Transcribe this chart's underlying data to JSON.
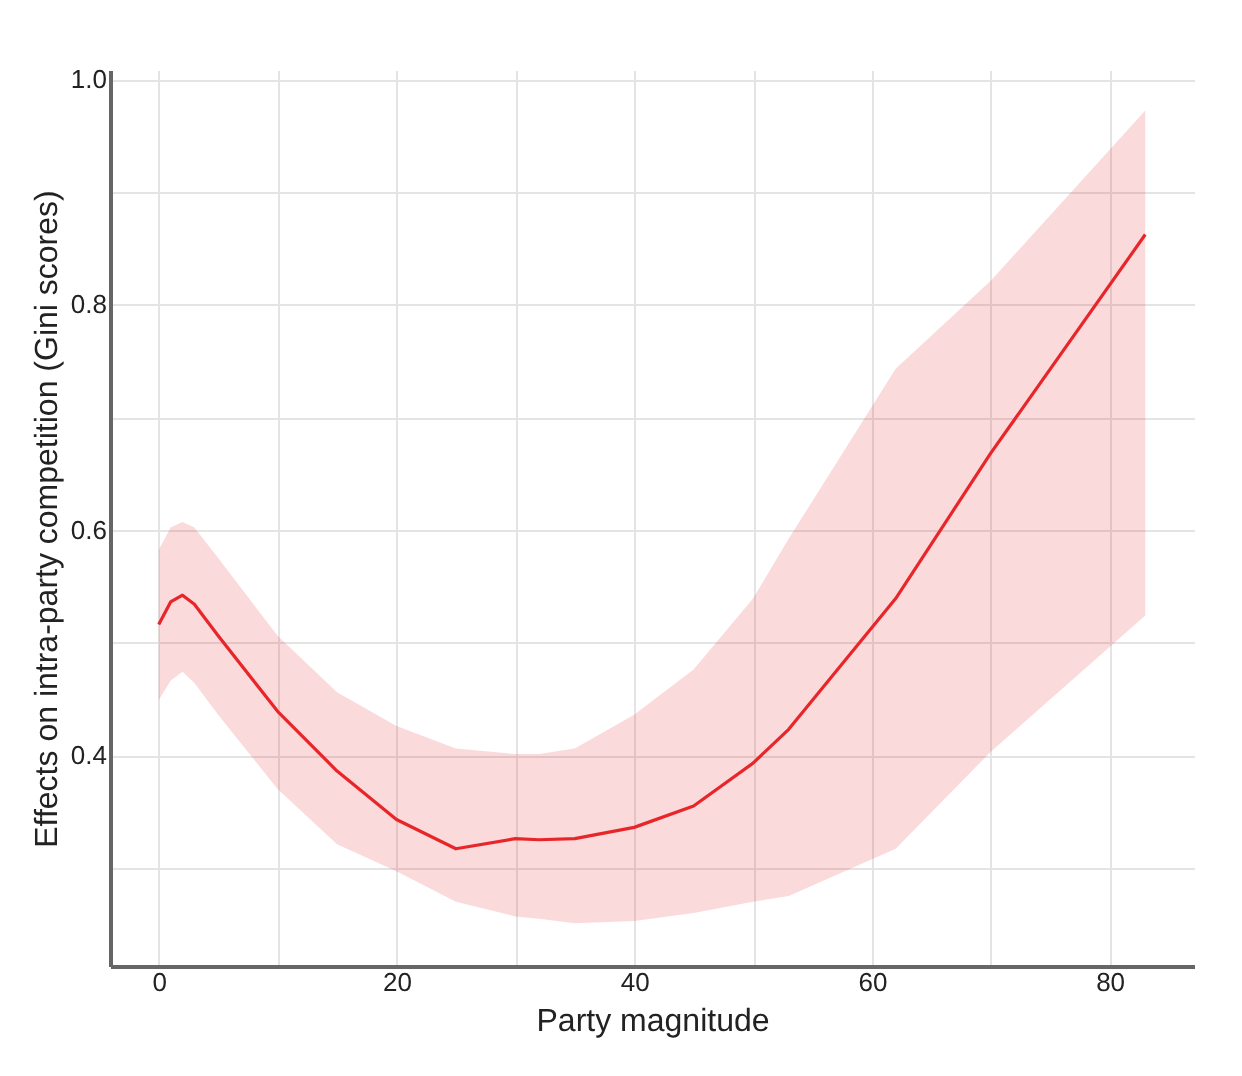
{
  "chart_data": {
    "type": "line",
    "xlabel": "Party magnitude",
    "ylabel": "Effects on intra-party competition (Gini scores)",
    "x": [
      0,
      1,
      2,
      3,
      5,
      10,
      15,
      20,
      25,
      30,
      32,
      35,
      40,
      45,
      50,
      53,
      62,
      70,
      83
    ],
    "series": [
      {
        "color": "#e8262a",
        "values": [
          0.516,
          0.536,
          0.542,
          0.534,
          0.506,
          0.439,
          0.386,
          0.343,
          0.317,
          0.326,
          0.325,
          0.326,
          0.336,
          0.355,
          0.393,
          0.423,
          0.539,
          0.668,
          0.862
        ],
        "lower": [
          0.449,
          0.466,
          0.474,
          0.464,
          0.436,
          0.37,
          0.321,
          0.297,
          0.27,
          0.257,
          0.255,
          0.251,
          0.253,
          0.26,
          0.27,
          0.275,
          0.317,
          0.403,
          0.524
        ],
        "upper": [
          0.582,
          0.602,
          0.607,
          0.602,
          0.575,
          0.506,
          0.456,
          0.426,
          0.406,
          0.401,
          0.401,
          0.406,
          0.436,
          0.476,
          0.539,
          0.592,
          0.743,
          0.821,
          0.972
        ]
      }
    ],
    "xlim": [
      -4.1,
      87.1
    ],
    "ylim": [
      0.213,
      1.008
    ],
    "xticks": [
      0,
      {
        "value": 10,
        "label": null
      },
      20,
      {
        "value": 30,
        "label": null
      },
      40,
      {
        "value": 50,
        "label": null
      },
      60,
      {
        "value": 70,
        "label": null
      },
      80
    ],
    "yticks": [
      {
        "value": 0.3,
        "label": null
      },
      0.4,
      {
        "value": 0.5,
        "label": null
      },
      0.6,
      {
        "value": 0.7,
        "label": null
      },
      0.8,
      {
        "value": 0.9,
        "label": null
      },
      {
        "value": 1.0,
        "label": "1.0"
      }
    ],
    "grid": true,
    "marker": "none",
    "line_style": "solid"
  }
}
